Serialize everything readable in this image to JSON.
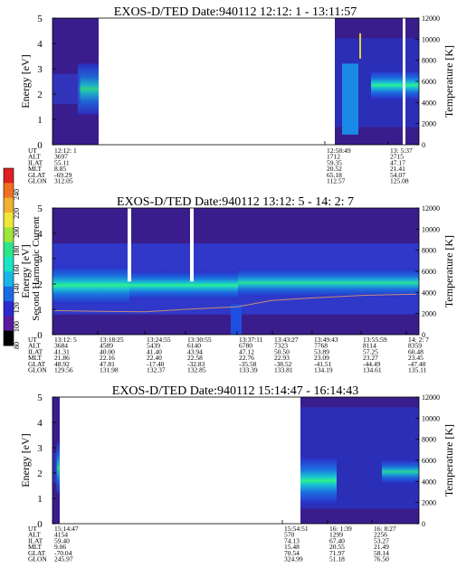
{
  "colorbar": {
    "label": "Second Harmonic Current",
    "ticks": [
      "80",
      "100",
      "120",
      "140",
      "160",
      "180",
      "200",
      "220",
      "240"
    ]
  },
  "chart_data": [
    {
      "type": "heatmap",
      "title": "EXOS-D/TED   Date:940112  12:12: 1 - 13:11:57",
      "ylabel": "Energy [eV]",
      "y2label": "Temperature [K]",
      "ylim": [
        0,
        5
      ],
      "y2lim": [
        0,
        12000
      ],
      "yticks": [
        "0",
        "1",
        "2",
        "3",
        "4",
        "5"
      ],
      "y2ticks": [
        "0",
        "2000",
        "4000",
        "6000",
        "8000",
        "10000",
        "12000"
      ],
      "row_labels": [
        "UT",
        "ALT",
        "ILAT",
        "MLT",
        "GLAT",
        "GLON"
      ],
      "columns": [
        {
          "values": [
            "12:12: 1",
            "3697",
            "55.11",
            "8.85",
            "-69.29",
            "312.05"
          ]
        },
        {
          "values": [
            "12:58:49",
            "1712",
            "59.35",
            "20.52",
            "65.18",
            "112.57"
          ]
        },
        {
          "values": [
            "13: 5:37",
            "2715",
            "47.17",
            "21.41",
            "54.07",
            "125.08"
          ]
        }
      ]
    },
    {
      "type": "heatmap",
      "title": "EXOS-D/TED   Date:940112  13:12: 5 - 14: 2: 7",
      "ylabel": "Energy [eV]",
      "y2label": "Temperature [K]",
      "ylim": [
        0,
        5
      ],
      "y2lim": [
        0,
        12000
      ],
      "yticks": [
        "0",
        "1",
        "2",
        "3",
        "4",
        "5"
      ],
      "y2ticks": [
        "0",
        "2000",
        "4000",
        "6000",
        "8000",
        "10000",
        "12000"
      ],
      "row_labels": [
        "UT",
        "ALT",
        "ILAT",
        "MLT",
        "GLAT",
        "GLON"
      ],
      "columns": [
        {
          "values": [
            "13:12: 5",
            "3684",
            "41.31",
            "21.86",
            "48.92",
            "129.56"
          ]
        },
        {
          "values": [
            "13:18:25",
            "4589",
            "40.00",
            "22.16",
            "47.81",
            "131.98"
          ]
        },
        {
          "values": [
            "13:24:55",
            "5439",
            "41.40",
            "22.40",
            "-17.40",
            "132.37"
          ]
        },
        {
          "values": [
            "13:30:55",
            "6140",
            "43.94",
            "22.58",
            "-32.83",
            "132.85"
          ]
        },
        {
          "values": [
            "13:37:11",
            "6780",
            "47.12",
            "22.76",
            "-35.58",
            "133.39"
          ]
        },
        {
          "values": [
            "13:43:27",
            "7323",
            "50.50",
            "22.93",
            "-38.52",
            "133.81"
          ]
        },
        {
          "values": [
            "13:49:43",
            "7768",
            "53.89",
            "23.09",
            "-41.51",
            "134.19"
          ]
        },
        {
          "values": [
            "13:55:59",
            "8114",
            "57.25",
            "23.27",
            "-44.49",
            "134.61"
          ]
        },
        {
          "values": [
            "14: 2: 7",
            "8359",
            "60.48",
            "23.45",
            "-47.40",
            "135.11"
          ]
        }
      ]
    },
    {
      "type": "heatmap",
      "title": "EXOS-D/TED   Date:940112  15:14:47 - 16:14:43",
      "ylabel": "Energy [eV]",
      "y2label": "Temperature [K]",
      "ylim": [
        0,
        5
      ],
      "y2lim": [
        0,
        12000
      ],
      "yticks": [
        "0",
        "1",
        "2",
        "3",
        "4",
        "5"
      ],
      "y2ticks": [
        "0",
        "2000",
        "4000",
        "6000",
        "8000",
        "10000",
        "12000"
      ],
      "row_labels": [
        "UT",
        "ALT",
        "ILAT",
        "MLT",
        "GLAT",
        "GLON"
      ],
      "columns": [
        {
          "values": [
            "15:14:47",
            "4154",
            "59.40",
            "9.06",
            "-70.04",
            "245.97"
          ]
        },
        {
          "values": [
            "15:54:51",
            "570",
            "74.13",
            "15.48",
            "70.54",
            "324.99"
          ]
        },
        {
          "values": [
            "16: 1:39",
            "1299",
            "67.40",
            "20.55",
            "71.97",
            "51.18"
          ]
        },
        {
          "values": [
            "16: 8:27",
            "2256",
            "53.27",
            "21.49",
            "58.14",
            "76.50"
          ]
        }
      ]
    }
  ]
}
